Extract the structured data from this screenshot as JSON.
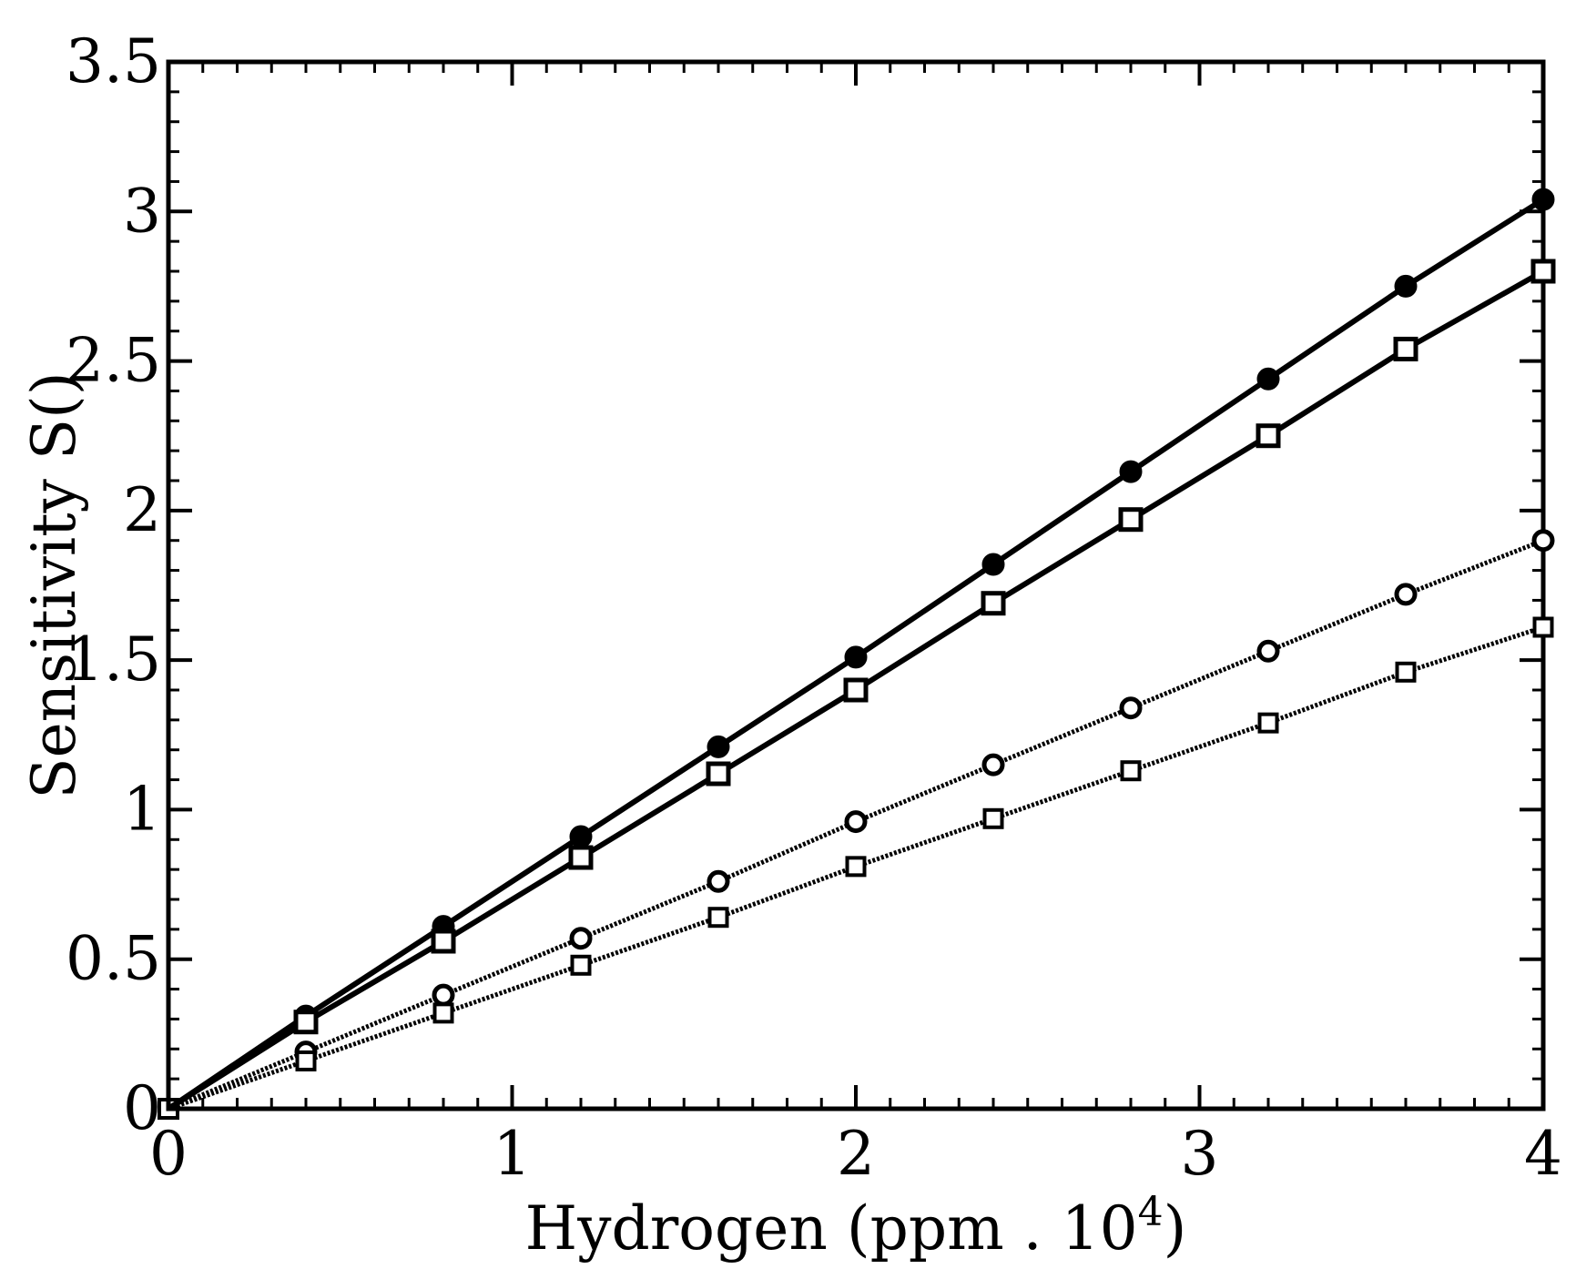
{
  "chart_data": {
    "type": "line",
    "xlabel": "Hydrogen (ppm . 10",
    "xlabel_superscript": "4",
    "xlabel_close": ")",
    "ylabel": "Sensitivity S(",
    "ylabel_close": ")",
    "xlim": [
      0,
      4
    ],
    "ylim": [
      0,
      3.5
    ],
    "xticks": [
      "0",
      "1",
      "2",
      "3",
      "4"
    ],
    "yticks": [
      "0",
      "0.5",
      "1",
      "1.5",
      "2",
      "2.5",
      "3",
      "3.5"
    ],
    "grid": false,
    "x": [
      0,
      0.4,
      0.8,
      1.2,
      1.6,
      2.0,
      2.4,
      2.8,
      3.2,
      3.6,
      4.0
    ],
    "series": [
      {
        "marker": "circle-filled",
        "line_style": "solid-thick",
        "values": [
          0,
          0.31,
          0.61,
          0.91,
          1.21,
          1.51,
          1.82,
          2.13,
          2.44,
          2.75,
          3.04
        ]
      },
      {
        "marker": "square-open",
        "line_style": "solid-thick",
        "values": [
          0,
          0.29,
          0.56,
          0.84,
          1.12,
          1.4,
          1.69,
          1.97,
          2.25,
          2.54,
          2.8
        ]
      },
      {
        "marker": "circle-open",
        "line_style": "dotted",
        "values": [
          0,
          0.19,
          0.38,
          0.57,
          0.76,
          0.96,
          1.15,
          1.34,
          1.53,
          1.72,
          1.9
        ]
      },
      {
        "marker": "square-open",
        "line_style": "dotted",
        "values": [
          0,
          0.16,
          0.32,
          0.48,
          0.64,
          0.81,
          0.97,
          1.13,
          1.29,
          1.46,
          1.61
        ]
      }
    ]
  }
}
